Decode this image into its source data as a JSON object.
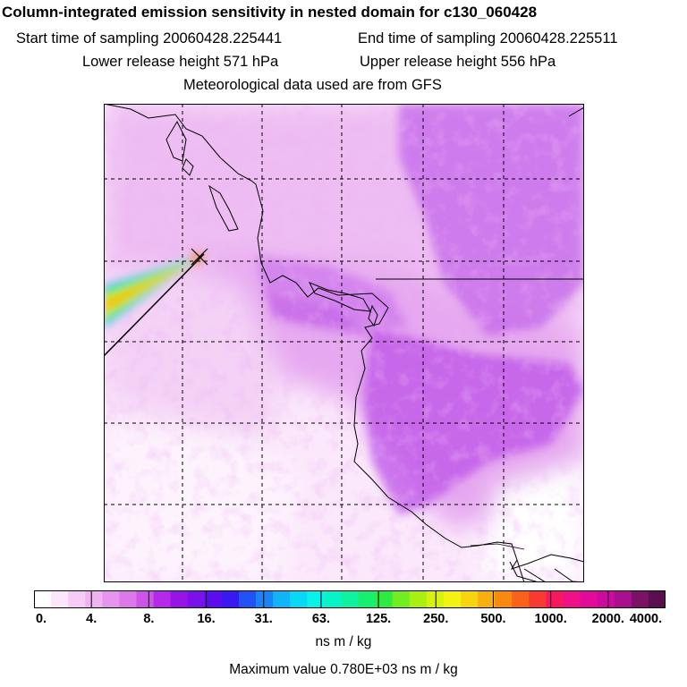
{
  "title": "Column-integrated emission sensitivity in nested domain for c130_060428",
  "start_label": "Start time of sampling 20060428.225441",
  "end_label": "End time of sampling 20060428.225511",
  "lower_label": "Lower release height  571 hPa",
  "upper_label": "Upper release height  556 hPa",
  "met_label": "Meteorological data used are from GFS",
  "colorbar": {
    "colors": [
      "#ffffff",
      "#fbe6fb",
      "#f6ccf6",
      "#f0b2f0",
      "#e695ee",
      "#dc78ea",
      "#cc55e8",
      "#b52ae8",
      "#9615e6",
      "#7a10ea",
      "#5a0ef0",
      "#3a18f2",
      "#2052f5",
      "#1884f6",
      "#10b4f7",
      "#08d8f6",
      "#08f2ea",
      "#08f4c8",
      "#10f2a0",
      "#18ee70",
      "#30ea40",
      "#70ee20",
      "#a8f010",
      "#d8f210",
      "#f4f210",
      "#f8d410",
      "#f8b010",
      "#f88a10",
      "#f8621a",
      "#f83a30",
      "#f81860",
      "#f01088",
      "#e20a98",
      "#cc0aa0",
      "#a8108e",
      "#7c1266",
      "#5a1050"
    ],
    "ticks": [
      "0.",
      "4.",
      "8.",
      "16.",
      "31.",
      "63.",
      "125.",
      "250.",
      "500.",
      "1000.",
      "2000.",
      "4000."
    ]
  },
  "unit": "ns m / kg",
  "max_value": "Maximum value  0.780E+03 ns m / kg"
}
